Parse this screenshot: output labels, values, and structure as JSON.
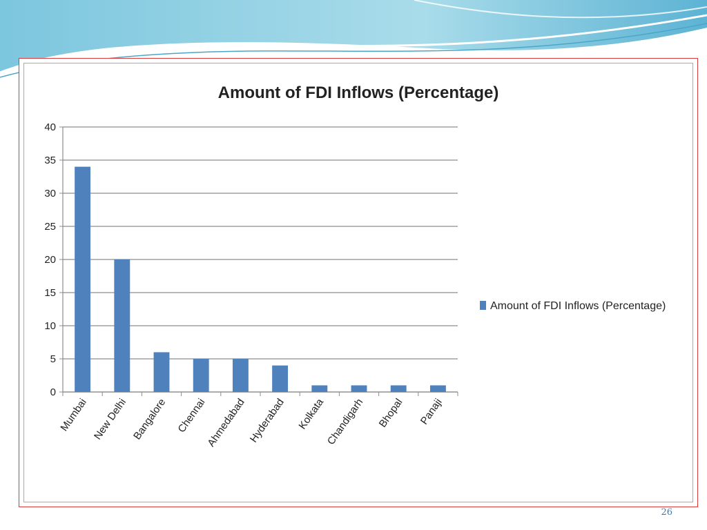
{
  "slide": {
    "number": "26"
  },
  "colors": {
    "bar": "#4f81bd",
    "grid": "#8c8c8c",
    "text": "#222222",
    "frame": "#d63a3a",
    "wave_dark": "#5fb6d6",
    "wave_light": "#bfe6f0"
  },
  "chart_data": {
    "type": "bar",
    "title": "Amount of FDI Inflows (Percentage)",
    "xlabel": "",
    "ylabel": "",
    "categories": [
      "Mumbai",
      "New Delhi",
      "Bangalore",
      "Chennai",
      "Ahmedabad",
      "Hyderabad",
      "Kolkata",
      "Chandigarh",
      "Bhopal",
      "Panaji"
    ],
    "series": [
      {
        "name": "Amount of FDI Inflows (Percentage)",
        "values": [
          34,
          20,
          6,
          5,
          5,
          4,
          1,
          1,
          1,
          1
        ]
      }
    ],
    "ylim": [
      0,
      40
    ],
    "yticks": [
      0,
      5,
      10,
      15,
      20,
      25,
      30,
      35,
      40
    ],
    "grid": true,
    "legend": "right"
  }
}
